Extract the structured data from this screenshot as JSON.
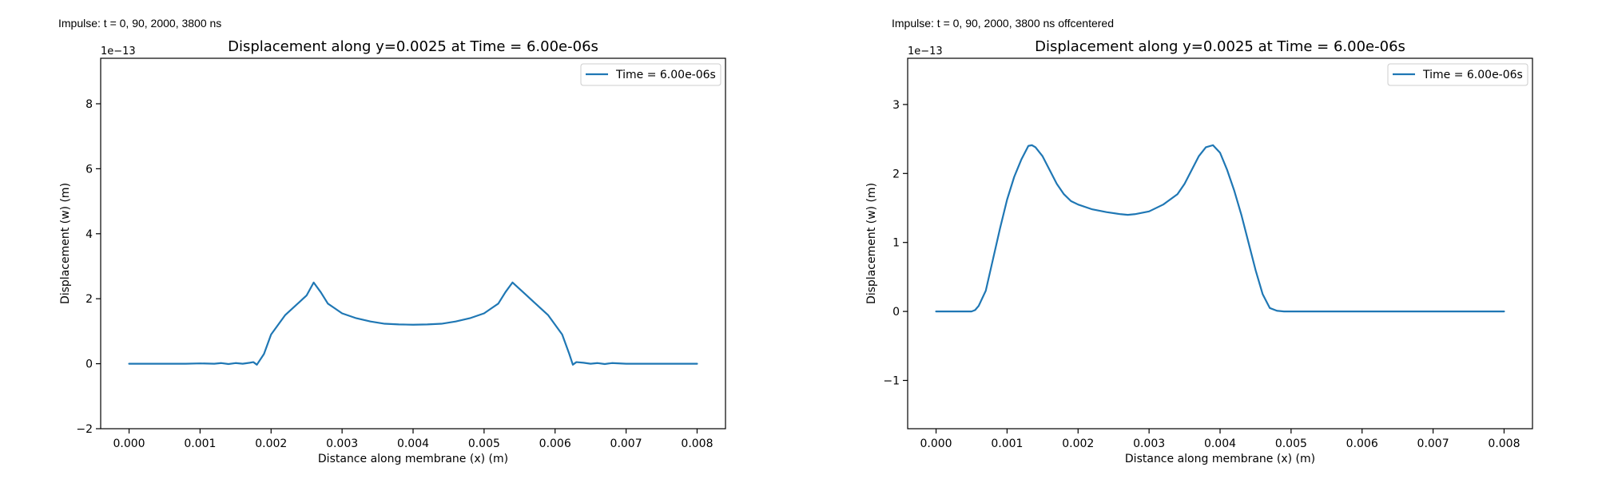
{
  "figure": {
    "captions": [
      "Impulse: t = 0, 90, 2000, 3800 ns",
      "Impulse: t = 0, 90, 2000, 3800 ns offcentered"
    ]
  },
  "colors": {
    "line": "#1f77b4",
    "axes": "#000000",
    "legend_border": "#cccccc"
  },
  "chart_data": [
    {
      "type": "line",
      "title": "Displacement along y=0.0025 at Time = 6.00e-06s",
      "xlabel": "Distance along membrane (x) (m)",
      "ylabel": "Displacement (w) (m)",
      "y_offset_label": "1e−13",
      "y_scale": 1e-13,
      "xlim": [
        -0.0004,
        0.0084
      ],
      "ylim": [
        -2,
        9.4
      ],
      "xticks": [
        0,
        0.001,
        0.002,
        0.003,
        0.004,
        0.005,
        0.006,
        0.007,
        0.008
      ],
      "xtick_labels": [
        "0.000",
        "0.001",
        "0.002",
        "0.003",
        "0.004",
        "0.005",
        "0.006",
        "0.007",
        "0.008"
      ],
      "yticks": [
        -2,
        0,
        2,
        4,
        6,
        8
      ],
      "ytick_labels": [
        "−2",
        "0",
        "2",
        "4",
        "6",
        "8"
      ],
      "grid": false,
      "legend_position": "upper right",
      "series": [
        {
          "name": "Time = 6.00e-06s",
          "color": "#1f77b4",
          "x": [
            0,
            0.0002,
            0.0004,
            0.0006,
            0.0008,
            0.001,
            0.0012,
            0.0013,
            0.0014,
            0.0015,
            0.0016,
            0.0017,
            0.00175,
            0.0018,
            0.0019,
            0.002,
            0.0021,
            0.0022,
            0.0023,
            0.0024,
            0.0025,
            0.0026,
            0.0027,
            0.0028,
            0.0029,
            0.003,
            0.0032,
            0.0034,
            0.0036,
            0.0038,
            0.004,
            0.0042,
            0.0044,
            0.0046,
            0.0048,
            0.005,
            0.0051,
            0.0052,
            0.0053,
            0.0054,
            0.0055,
            0.0056,
            0.0057,
            0.0058,
            0.0059,
            0.006,
            0.0061,
            0.0062,
            0.00625,
            0.0063,
            0.0064,
            0.0065,
            0.0066,
            0.0067,
            0.0068,
            0.007,
            0.0072,
            0.0074,
            0.0076,
            0.0078,
            0.008
          ],
          "y": [
            0,
            0,
            0,
            0,
            0,
            0.01,
            0,
            0.02,
            -0.01,
            0.02,
            0,
            0.03,
            0.05,
            -0.03,
            0.3,
            0.9,
            1.2,
            1.5,
            1.7,
            1.9,
            2.1,
            2.5,
            2.2,
            1.85,
            1.7,
            1.55,
            1.4,
            1.3,
            1.23,
            1.21,
            1.2,
            1.21,
            1.23,
            1.3,
            1.4,
            1.55,
            1.7,
            1.85,
            2.2,
            2.5,
            2.3,
            2.1,
            1.9,
            1.7,
            1.5,
            1.2,
            0.9,
            0.3,
            -0.03,
            0.05,
            0.03,
            0,
            0.02,
            -0.01,
            0.02,
            0,
            0,
            0,
            0,
            0,
            0
          ]
        }
      ]
    },
    {
      "type": "line",
      "title": "Displacement along y=0.0025 at Time = 6.00e-06s",
      "xlabel": "Distance along membrane (x) (m)",
      "ylabel": "Displacement (w) (m)",
      "y_offset_label": "1e−13",
      "y_scale": 1e-13,
      "xlim": [
        -0.0004,
        0.0084
      ],
      "ylim": [
        -1.7,
        3.67
      ],
      "xticks": [
        0,
        0.001,
        0.002,
        0.003,
        0.004,
        0.005,
        0.006,
        0.007,
        0.008
      ],
      "xtick_labels": [
        "0.000",
        "0.001",
        "0.002",
        "0.003",
        "0.004",
        "0.005",
        "0.006",
        "0.007",
        "0.008"
      ],
      "yticks": [
        -1,
        0,
        1,
        2,
        3
      ],
      "ytick_labels": [
        "−1",
        "0",
        "1",
        "2",
        "3"
      ],
      "grid": false,
      "legend_position": "upper right",
      "series": [
        {
          "name": "Time = 6.00e-06s",
          "color": "#1f77b4",
          "x": [
            0,
            0.0001,
            0.0002,
            0.0003,
            0.0004,
            0.0005,
            0.00055,
            0.0006,
            0.0007,
            0.0008,
            0.0009,
            0.001,
            0.0011,
            0.0012,
            0.0013,
            0.00135,
            0.0014,
            0.0015,
            0.0016,
            0.0017,
            0.0018,
            0.0019,
            0.002,
            0.0022,
            0.0024,
            0.0026,
            0.0027,
            0.0028,
            0.003,
            0.0032,
            0.0034,
            0.0035,
            0.0036,
            0.0037,
            0.0038,
            0.0039,
            0.004,
            0.0041,
            0.0042,
            0.0043,
            0.0044,
            0.0045,
            0.0046,
            0.0047,
            0.0048,
            0.0049,
            0.005,
            0.0055,
            0.006,
            0.0065,
            0.007,
            0.0075,
            0.008
          ],
          "y": [
            0,
            0,
            0,
            0,
            0,
            0,
            0.02,
            0.08,
            0.3,
            0.75,
            1.2,
            1.62,
            1.95,
            2.2,
            2.4,
            2.41,
            2.38,
            2.25,
            2.05,
            1.85,
            1.7,
            1.6,
            1.55,
            1.48,
            1.44,
            1.41,
            1.4,
            1.41,
            1.45,
            1.55,
            1.7,
            1.85,
            2.05,
            2.25,
            2.38,
            2.41,
            2.3,
            2.05,
            1.75,
            1.4,
            1.0,
            0.6,
            0.25,
            0.05,
            0.01,
            0,
            0,
            0,
            0,
            0,
            0,
            0,
            0
          ]
        }
      ]
    }
  ]
}
